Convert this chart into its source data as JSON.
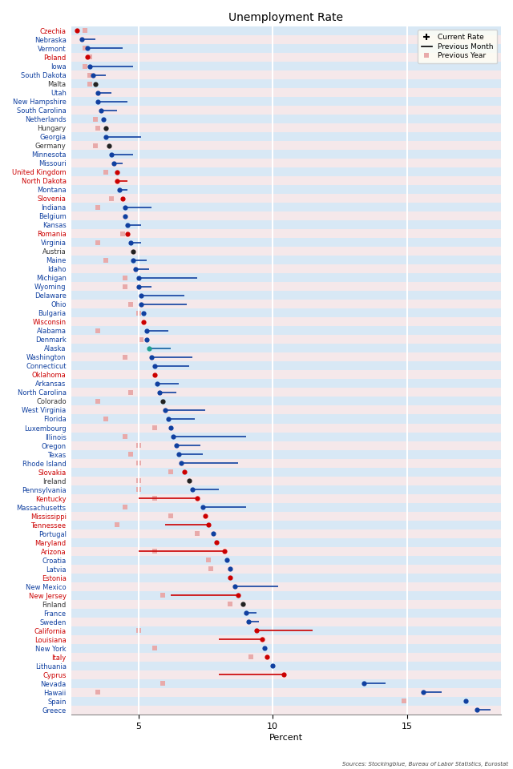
{
  "title": "Unemployment Rate",
  "xlabel": "Percent",
  "source": "Sources: Stockingblue, Bureau of Labor Statistics, Eurostat",
  "xlim": [
    2.5,
    18.5
  ],
  "xticks": [
    5,
    10,
    15
  ],
  "entries": [
    {
      "name": "Czechia",
      "color": "red",
      "current": 2.7,
      "prev_month": null,
      "prev_year": 3.0
    },
    {
      "name": "Nebraska",
      "color": "blue",
      "current": 2.9,
      "prev_month": 3.4,
      "prev_year": null
    },
    {
      "name": "Vermont",
      "color": "blue",
      "current": 3.1,
      "prev_month": 4.4,
      "prev_year": 3.0
    },
    {
      "name": "Poland",
      "color": "red",
      "current": 3.1,
      "prev_month": null,
      "prev_year": 3.2
    },
    {
      "name": "Iowa",
      "color": "blue",
      "current": 3.2,
      "prev_month": 4.8,
      "prev_year": 3.0
    },
    {
      "name": "South Dakota",
      "color": "blue",
      "current": 3.3,
      "prev_month": 3.8,
      "prev_year": 3.2
    },
    {
      "name": "Malta",
      "color": "black",
      "current": 3.4,
      "prev_month": null,
      "prev_year": 3.2
    },
    {
      "name": "Utah",
      "color": "blue",
      "current": 3.5,
      "prev_month": 4.0,
      "prev_year": null
    },
    {
      "name": "New Hampshire",
      "color": "blue",
      "current": 3.5,
      "prev_month": 4.6,
      "prev_year": null
    },
    {
      "name": "South Carolina",
      "color": "blue",
      "current": 3.6,
      "prev_month": 4.2,
      "prev_year": null
    },
    {
      "name": "Netherlands",
      "color": "blue",
      "current": 3.7,
      "prev_month": null,
      "prev_year": 3.4
    },
    {
      "name": "Hungary",
      "color": "black",
      "current": 3.8,
      "prev_month": null,
      "prev_year": 3.5
    },
    {
      "name": "Georgia",
      "color": "blue",
      "current": 3.8,
      "prev_month": 5.1,
      "prev_year": null
    },
    {
      "name": "Germany",
      "color": "black",
      "current": 3.9,
      "prev_month": null,
      "prev_year": 3.4
    },
    {
      "name": "Minnesota",
      "color": "blue",
      "current": 4.0,
      "prev_month": 4.8,
      "prev_year": null
    },
    {
      "name": "Missouri",
      "color": "blue",
      "current": 4.1,
      "prev_month": 4.4,
      "prev_year": null
    },
    {
      "name": "United Kingdom",
      "color": "red",
      "current": 4.2,
      "prev_month": null,
      "prev_year": 3.8
    },
    {
      "name": "North Dakota",
      "color": "red",
      "current": 4.2,
      "prev_month": 4.6,
      "prev_year": null
    },
    {
      "name": "Montana",
      "color": "blue",
      "current": 4.3,
      "prev_month": 4.6,
      "prev_year": null
    },
    {
      "name": "Slovenia",
      "color": "red",
      "current": 4.4,
      "prev_month": null,
      "prev_year": 4.0
    },
    {
      "name": "Indiana",
      "color": "blue",
      "current": 4.5,
      "prev_month": 5.5,
      "prev_year": 3.5
    },
    {
      "name": "Belgium",
      "color": "blue",
      "current": 4.5,
      "prev_month": null,
      "prev_year": null
    },
    {
      "name": "Kansas",
      "color": "blue",
      "current": 4.6,
      "prev_month": 5.1,
      "prev_year": null
    },
    {
      "name": "Romania",
      "color": "red",
      "current": 4.6,
      "prev_month": null,
      "prev_year": 4.4
    },
    {
      "name": "Virginia",
      "color": "blue",
      "current": 4.7,
      "prev_month": 5.1,
      "prev_year": 3.5
    },
    {
      "name": "Austria",
      "color": "black",
      "current": 4.8,
      "prev_month": null,
      "prev_year": null
    },
    {
      "name": "Maine",
      "color": "blue",
      "current": 4.8,
      "prev_month": 5.3,
      "prev_year": 3.8
    },
    {
      "name": "Idaho",
      "color": "blue",
      "current": 4.9,
      "prev_month": 5.4,
      "prev_year": null
    },
    {
      "name": "Michigan",
      "color": "blue",
      "current": 5.0,
      "prev_month": 7.2,
      "prev_year": 4.5
    },
    {
      "name": "Wyoming",
      "color": "blue",
      "current": 5.0,
      "prev_month": 5.5,
      "prev_year": 4.5
    },
    {
      "name": "Delaware",
      "color": "blue",
      "current": 5.1,
      "prev_month": 6.7,
      "prev_year": null
    },
    {
      "name": "Ohio",
      "color": "blue",
      "current": 5.1,
      "prev_month": 6.8,
      "prev_year": 4.7
    },
    {
      "name": "Bulgaria",
      "color": "blue",
      "current": 5.2,
      "prev_month": null,
      "prev_year": 5.0
    },
    {
      "name": "Wisconsin",
      "color": "red",
      "current": 5.2,
      "prev_month": null,
      "prev_year": null
    },
    {
      "name": "Alabama",
      "color": "blue",
      "current": 5.3,
      "prev_month": 6.1,
      "prev_year": 3.5
    },
    {
      "name": "Denmark",
      "color": "blue",
      "current": 5.3,
      "prev_month": null,
      "prev_year": 5.1
    },
    {
      "name": "Alaska",
      "color": "teal",
      "current": 5.4,
      "prev_month": 6.2,
      "prev_year": null
    },
    {
      "name": "Washington",
      "color": "blue",
      "current": 5.5,
      "prev_month": 7.0,
      "prev_year": 4.5
    },
    {
      "name": "Connecticut",
      "color": "blue",
      "current": 5.6,
      "prev_month": 6.9,
      "prev_year": null
    },
    {
      "name": "Oklahoma",
      "color": "red",
      "current": 5.6,
      "prev_month": null,
      "prev_year": null
    },
    {
      "name": "Arkansas",
      "color": "blue",
      "current": 5.7,
      "prev_month": 6.5,
      "prev_year": null
    },
    {
      "name": "North Carolina",
      "color": "blue",
      "current": 5.8,
      "prev_month": 6.4,
      "prev_year": 4.7
    },
    {
      "name": "Colorado",
      "color": "black",
      "current": 5.9,
      "prev_month": null,
      "prev_year": 3.5
    },
    {
      "name": "West Virginia",
      "color": "blue",
      "current": 6.0,
      "prev_month": 7.5,
      "prev_year": null
    },
    {
      "name": "Florida",
      "color": "blue",
      "current": 6.1,
      "prev_month": 7.1,
      "prev_year": 3.8
    },
    {
      "name": "Luxembourg",
      "color": "blue",
      "current": 6.2,
      "prev_month": null,
      "prev_year": 5.6
    },
    {
      "name": "Illinois",
      "color": "blue",
      "current": 6.3,
      "prev_month": 9.0,
      "prev_year": 4.5
    },
    {
      "name": "Oregon",
      "color": "blue",
      "current": 6.4,
      "prev_month": 7.3,
      "prev_year": 5.0
    },
    {
      "name": "Texas",
      "color": "blue",
      "current": 6.5,
      "prev_month": 7.4,
      "prev_year": 4.7
    },
    {
      "name": "Rhode Island",
      "color": "blue",
      "current": 6.6,
      "prev_month": 8.7,
      "prev_year": 5.0
    },
    {
      "name": "Slovakia",
      "color": "red",
      "current": 6.7,
      "prev_month": null,
      "prev_year": 6.2
    },
    {
      "name": "Ireland",
      "color": "black",
      "current": 6.9,
      "prev_month": null,
      "prev_year": 5.0
    },
    {
      "name": "Pennsylvania",
      "color": "blue",
      "current": 7.0,
      "prev_month": 8.0,
      "prev_year": 5.0
    },
    {
      "name": "Kentucky",
      "color": "red",
      "current": 7.2,
      "prev_month": 5.0,
      "prev_year": 5.6
    },
    {
      "name": "Massachusetts",
      "color": "blue",
      "current": 7.4,
      "prev_month": 9.0,
      "prev_year": 4.5
    },
    {
      "name": "Mississippi",
      "color": "red",
      "current": 7.5,
      "prev_month": null,
      "prev_year": 6.2
    },
    {
      "name": "Tennessee",
      "color": "red",
      "current": 7.6,
      "prev_month": 6.0,
      "prev_year": 4.2
    },
    {
      "name": "Portugal",
      "color": "blue",
      "current": 7.8,
      "prev_month": null,
      "prev_year": 7.2
    },
    {
      "name": "Maryland",
      "color": "red",
      "current": 7.9,
      "prev_month": null,
      "prev_year": null
    },
    {
      "name": "Arizona",
      "color": "red",
      "current": 8.2,
      "prev_month": 5.0,
      "prev_year": 5.6
    },
    {
      "name": "Croatia",
      "color": "blue",
      "current": 8.3,
      "prev_month": null,
      "prev_year": 7.6
    },
    {
      "name": "Latvia",
      "color": "blue",
      "current": 8.4,
      "prev_month": null,
      "prev_year": 7.7
    },
    {
      "name": "Estonia",
      "color": "red",
      "current": 8.4,
      "prev_month": null,
      "prev_year": null
    },
    {
      "name": "New Mexico",
      "color": "blue",
      "current": 8.6,
      "prev_month": 10.2,
      "prev_year": null
    },
    {
      "name": "New Jersey",
      "color": "red",
      "current": 8.7,
      "prev_month": 6.2,
      "prev_year": 5.9
    },
    {
      "name": "Finland",
      "color": "black",
      "current": 8.9,
      "prev_month": null,
      "prev_year": 8.4
    },
    {
      "name": "France",
      "color": "blue",
      "current": 9.0,
      "prev_month": 9.4,
      "prev_year": null
    },
    {
      "name": "Sweden",
      "color": "blue",
      "current": 9.1,
      "prev_month": 9.5,
      "prev_year": null
    },
    {
      "name": "California",
      "color": "red",
      "current": 9.4,
      "prev_month": 11.5,
      "prev_year": 5.0
    },
    {
      "name": "Louisiana",
      "color": "red",
      "current": 9.6,
      "prev_month": 8.0,
      "prev_year": null
    },
    {
      "name": "New York",
      "color": "blue",
      "current": 9.7,
      "prev_month": null,
      "prev_year": 5.6
    },
    {
      "name": "Italy",
      "color": "red",
      "current": 9.8,
      "prev_month": null,
      "prev_year": 9.2
    },
    {
      "name": "Lithuania",
      "color": "blue",
      "current": 10.0,
      "prev_month": null,
      "prev_year": null
    },
    {
      "name": "Cyprus",
      "color": "red",
      "current": 10.4,
      "prev_month": 8.0,
      "prev_year": null
    },
    {
      "name": "Nevada",
      "color": "blue",
      "current": 13.4,
      "prev_month": 14.2,
      "prev_year": 5.9
    },
    {
      "name": "Hawaii",
      "color": "blue",
      "current": 15.6,
      "prev_month": 16.3,
      "prev_year": 3.5
    },
    {
      "name": "Spain",
      "color": "blue",
      "current": 17.2,
      "prev_month": null,
      "prev_year": 14.9
    },
    {
      "name": "Greece",
      "color": "blue",
      "current": 17.6,
      "prev_month": 18.1,
      "prev_year": null
    }
  ]
}
